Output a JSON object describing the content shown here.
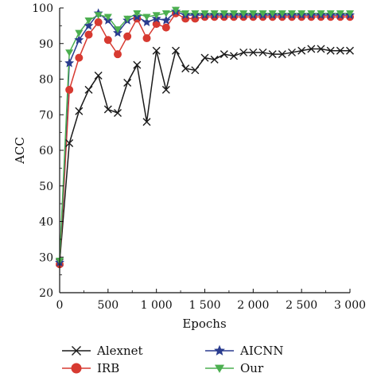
{
  "chart_data": {
    "type": "line",
    "xlabel": "Epochs",
    "ylabel": "ACC",
    "xlim": [
      0,
      3000
    ],
    "ylim": [
      20,
      100
    ],
    "x_ticks": [
      0,
      500,
      1000,
      1500,
      2000,
      2500,
      3000
    ],
    "x_tick_labels": [
      "0",
      "500",
      "1 000",
      "1 500",
      "2 000",
      "2 500",
      "3 000"
    ],
    "y_ticks": [
      20,
      30,
      40,
      50,
      60,
      70,
      80,
      90,
      100
    ],
    "y_tick_labels": [
      "20",
      "30",
      "40",
      "50",
      "60",
      "70",
      "80",
      "90",
      "100"
    ],
    "grid": false,
    "legend_position": "bottom",
    "series": [
      {
        "name": "Alexnet",
        "color": "#1a1a1a",
        "marker": "x",
        "x": [
          0,
          100,
          200,
          300,
          400,
          500,
          600,
          700,
          800,
          900,
          1000,
          1100,
          1200,
          1300,
          1400,
          1500,
          1600,
          1700,
          1800,
          1900,
          2000,
          2100,
          2200,
          2300,
          2400,
          2500,
          2600,
          2700,
          2800,
          2900,
          3000
        ],
        "values": [
          28.5,
          62,
          71,
          77,
          81,
          71.5,
          70.5,
          79,
          84,
          68,
          88,
          77,
          88,
          83,
          82.5,
          86,
          85.5,
          87,
          86.5,
          87.5,
          87.5,
          87.5,
          87,
          87,
          87.5,
          88,
          88.5,
          88.5,
          88,
          88,
          88
        ]
      },
      {
        "name": "IRB",
        "color": "#d73a31",
        "marker": "circle",
        "x": [
          0,
          100,
          200,
          300,
          400,
          500,
          600,
          700,
          800,
          900,
          1000,
          1100,
          1200,
          1300,
          1400,
          1500,
          1600,
          1700,
          1800,
          1900,
          2000,
          2100,
          2200,
          2300,
          2400,
          2500,
          2600,
          2700,
          2800,
          2900,
          3000
        ],
        "values": [
          28,
          77,
          86,
          92.5,
          96,
          91,
          87,
          92,
          97,
          91.5,
          95.5,
          94.5,
          98.5,
          97,
          97,
          97.5,
          97.5,
          97.5,
          97.5,
          97.5,
          97.5,
          97.5,
          97.5,
          97.5,
          97.5,
          97.5,
          97.5,
          97.5,
          97.5,
          97.5,
          97.5
        ]
      },
      {
        "name": "AICNN",
        "color": "#2a3c8f",
        "marker": "star",
        "x": [
          0,
          100,
          200,
          300,
          400,
          500,
          600,
          700,
          800,
          900,
          1000,
          1100,
          1200,
          1300,
          1400,
          1500,
          1600,
          1700,
          1800,
          1900,
          2000,
          2100,
          2200,
          2300,
          2400,
          2500,
          2600,
          2700,
          2800,
          2900,
          3000
        ],
        "values": [
          28.5,
          84.5,
          91,
          95,
          98.5,
          96.5,
          93,
          96.5,
          97.5,
          96,
          97,
          96.5,
          99,
          98,
          98,
          98,
          98,
          98,
          98,
          98,
          98,
          98,
          98,
          98,
          98,
          98,
          98,
          98,
          98,
          98,
          98
        ]
      },
      {
        "name": "Our",
        "color": "#4caf50",
        "marker": "triangle-down",
        "x": [
          0,
          100,
          200,
          300,
          400,
          500,
          600,
          700,
          800,
          900,
          1000,
          1100,
          1200,
          1300,
          1400,
          1500,
          1600,
          1700,
          1800,
          1900,
          2000,
          2100,
          2200,
          2300,
          2400,
          2500,
          2600,
          2700,
          2800,
          2900,
          3000
        ],
        "values": [
          29,
          87.5,
          93,
          96.5,
          98,
          97.5,
          94,
          97,
          98.5,
          97.5,
          98,
          98.5,
          99.5,
          98.5,
          98.5,
          98.5,
          98.5,
          98.5,
          98.5,
          98.5,
          98.5,
          98.5,
          98.5,
          98.5,
          98.5,
          98.5,
          98.5,
          98.5,
          98.5,
          98.5,
          98.5
        ]
      }
    ]
  }
}
